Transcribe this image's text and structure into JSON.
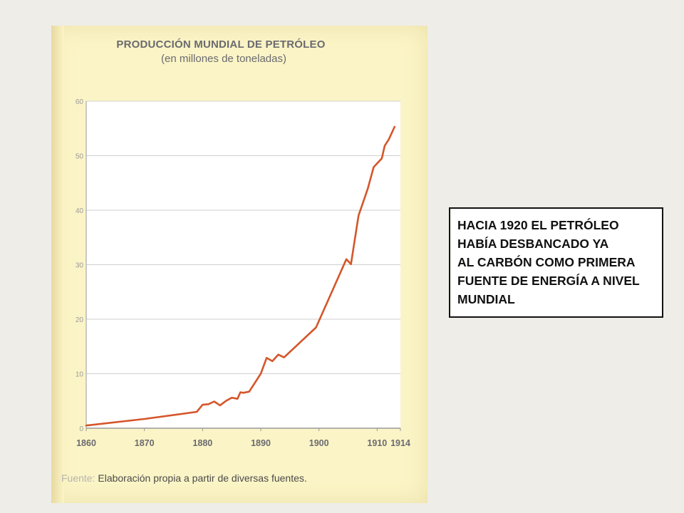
{
  "chart_data": {
    "type": "line",
    "title": "PRODUCCIÓN MUNDIAL DE PETRÓLEO",
    "subtitle": "(en millones de toneladas)",
    "xlabel": "",
    "ylabel": "",
    "xlim": [
      1860,
      1914
    ],
    "ylim": [
      0,
      60
    ],
    "x_ticks": [
      1860,
      1870,
      1880,
      1890,
      1900,
      1910,
      1914
    ],
    "y_ticks": [
      0,
      10,
      20,
      30,
      40,
      50,
      60
    ],
    "grid": "horizontal",
    "series": [
      {
        "color": "#d4562a",
        "points": [
          [
            1860,
            0.5
          ],
          [
            1870,
            1.7
          ],
          [
            1879,
            3.0
          ],
          [
            1880,
            4.3
          ],
          [
            1881,
            4.4
          ],
          [
            1882,
            4.9
          ],
          [
            1883,
            4.2
          ],
          [
            1884,
            5.0
          ],
          [
            1885,
            5.6
          ],
          [
            1886,
            5.4
          ],
          [
            1886.5,
            6.6
          ],
          [
            1887,
            6.5
          ],
          [
            1888,
            6.7
          ],
          [
            1890,
            10.0
          ],
          [
            1891,
            12.9
          ],
          [
            1892,
            12.3
          ],
          [
            1893,
            13.5
          ],
          [
            1894,
            13.0
          ],
          [
            1899.5,
            18.5
          ],
          [
            1904.7,
            31.0
          ],
          [
            1905.5,
            30.1
          ],
          [
            1906.8,
            39.0
          ],
          [
            1908.4,
            44.0
          ],
          [
            1909.4,
            47.9
          ],
          [
            1910.8,
            49.5
          ],
          [
            1911.3,
            51.8
          ],
          [
            1912,
            53.0
          ],
          [
            1913,
            55.3
          ]
        ]
      }
    ]
  },
  "source": {
    "label": "Fuente:",
    "text": " Elaboración propia a partir de diversas fuentes."
  },
  "callout": {
    "lines": [
      "HACIA 1920 EL PETRÓLEO",
      "HABÍA DESBANCADO YA",
      "AL CARBÓN COMO PRIMERA",
      "FUENTE DE ENERGÍA A NIVEL",
      "MUNDIAL"
    ]
  },
  "colors": {
    "page_background": "#eeede7",
    "scan_background": "#fbf4c6",
    "plot_background": "#ffffff",
    "line": "#d4562a",
    "axis_text": "#6a6a70"
  }
}
